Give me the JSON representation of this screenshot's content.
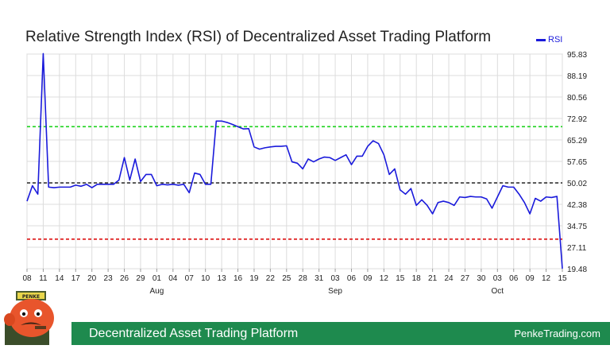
{
  "chart_data": {
    "type": "line",
    "title": "Relative Strength Index (RSI) of Decentralized Asset Trading Platform",
    "legend": {
      "position": "top-right",
      "entries": [
        "RSI"
      ]
    },
    "series": [
      {
        "name": "RSI",
        "color": "#1a1adb",
        "values": [
          43.5,
          49,
          46,
          96,
          48.5,
          48.3,
          48.5,
          48.5,
          48.5,
          49.2,
          48.8,
          49.5,
          48.3,
          49.5,
          49.5,
          49.5,
          49.5,
          51,
          59,
          51,
          58.5,
          50.5,
          53,
          53,
          49,
          49.5,
          49.3,
          49.5,
          49.2,
          49.5,
          46.5,
          53.5,
          53,
          49.5,
          49.5,
          72,
          72,
          71.5,
          70.8,
          70,
          69.2,
          69.3,
          62.8,
          62,
          62.5,
          62.8,
          63,
          63,
          63.2,
          57.5,
          57,
          55,
          58.5,
          57.5,
          58.5,
          59.2,
          59,
          58,
          59,
          60,
          56.5,
          59.5,
          59.5,
          63,
          65,
          64,
          60,
          53,
          55,
          47.5,
          46,
          48,
          42,
          44,
          42,
          39,
          43,
          43.5,
          43,
          42,
          45,
          44.8,
          45.2,
          45,
          45,
          44.3,
          41,
          45,
          49,
          48.5,
          48.5,
          46,
          43,
          39,
          44.5,
          43.5,
          45,
          44.8,
          45.2,
          19.5
        ]
      }
    ],
    "reference_lines": [
      {
        "value": 70,
        "color": "#1ed21e",
        "style": "dashed"
      },
      {
        "value": 50,
        "color": "#333333",
        "style": "dashed"
      },
      {
        "value": 30,
        "color": "#dd1111",
        "style": "dashed"
      }
    ],
    "ylim": [
      19.48,
      95.83
    ],
    "yticks": [
      "95.83",
      "88.19",
      "80.56",
      "72.92",
      "65.29",
      "57.65",
      "50.02",
      "42.38",
      "34.75",
      "27.11",
      "19.48"
    ],
    "xticks": [
      "08",
      "11",
      "14",
      "17",
      "20",
      "23",
      "26",
      "29",
      "01",
      "04",
      "07",
      "10",
      "13",
      "16",
      "19",
      "22",
      "25",
      "28",
      "31",
      "03",
      "06",
      "09",
      "12",
      "15",
      "18",
      "21",
      "24",
      "27",
      "30",
      "03",
      "06",
      "09",
      "12",
      "15"
    ],
    "months": [
      {
        "label": "Aug",
        "tick_index": 8
      },
      {
        "label": "Sep",
        "tick_index": 19
      },
      {
        "label": "Oct",
        "tick_index": 29
      }
    ],
    "grid": true
  },
  "footer": {
    "title": "Decentralized Asset Trading Platform",
    "site": "PenkeTrading.com"
  },
  "mascot": {
    "badge": "PENKE"
  }
}
